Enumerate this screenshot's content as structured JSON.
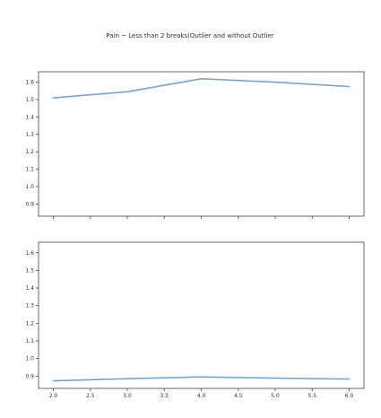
{
  "chart_data": {
    "type": "line",
    "title": "Pain ~ Less than 2 breaks(Outlier and without Outlier",
    "sharex": true,
    "sharey": true,
    "xlim": [
      1.8,
      6.2
    ],
    "ylim": [
      0.83,
      1.66
    ],
    "xticks": [
      "2.0",
      "2.5",
      "3.0",
      "3.5",
      "4.0",
      "4.5",
      "5.0",
      "5.5",
      "6.0"
    ],
    "yticks": [
      "0.9",
      "1.0",
      "1.1",
      "1.2",
      "1.3",
      "1.4",
      "1.5",
      "1.6"
    ],
    "colors": {
      "line": "#7ba3cf",
      "axis": "#444444"
    },
    "subplots": [
      {
        "x": [
          2,
          3,
          4,
          5,
          6
        ],
        "y": [
          1.51,
          1.545,
          1.62,
          1.6,
          1.575
        ]
      },
      {
        "x": [
          2,
          3,
          4,
          5,
          6
        ],
        "y": [
          0.873,
          0.885,
          0.895,
          0.888,
          0.883
        ]
      }
    ]
  }
}
